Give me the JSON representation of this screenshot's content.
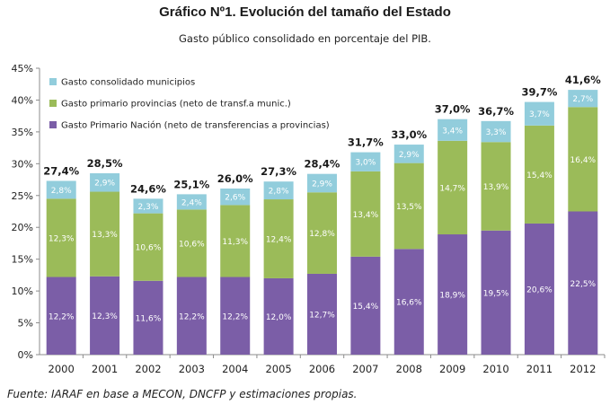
{
  "title": "Gráfico Nº1. Evolución del tamaño del Estado",
  "subtitle": "Gasto público consolidado en porcentaje del PIB.",
  "source": "Fuente: IARAF en base a MECON, DNCFP y estimaciones propias.",
  "chart_data": {
    "type": "bar",
    "stacked": true,
    "categories": [
      "2000",
      "2001",
      "2002",
      "2003",
      "2004",
      "2005",
      "2006",
      "2007",
      "2008",
      "2009",
      "2010",
      "2011",
      "2012"
    ],
    "series": [
      {
        "name": "Gasto Primario Nación (neto de transferencias a provincias)",
        "color": "#7b5ea7",
        "values": [
          12.2,
          12.3,
          11.6,
          12.2,
          12.2,
          12.0,
          12.7,
          15.4,
          16.6,
          18.9,
          19.5,
          20.6,
          22.5
        ],
        "labels": [
          "12,2%",
          "12,3%",
          "11,6%",
          "12,2%",
          "12,2%",
          "12,0%",
          "12,7%",
          "15,4%",
          "16,6%",
          "18,9%",
          "19,5%",
          "20,6%",
          "22,5%"
        ]
      },
      {
        "name": "Gasto primario provincias (neto de transf.a munic.)",
        "color": "#9bbb59",
        "values": [
          12.3,
          13.3,
          10.6,
          10.6,
          11.3,
          12.4,
          12.8,
          13.4,
          13.5,
          14.7,
          13.9,
          15.4,
          16.4
        ],
        "labels": [
          "12,3%",
          "13,3%",
          "10,6%",
          "10,6%",
          "11,3%",
          "12,4%",
          "12,8%",
          "13,4%",
          "13,5%",
          "14,7%",
          "13,9%",
          "15,4%",
          "16,4%"
        ]
      },
      {
        "name": "Gasto consolidado municipios",
        "color": "#92cddc",
        "values": [
          2.8,
          2.9,
          2.3,
          2.4,
          2.6,
          2.8,
          2.9,
          3.0,
          2.9,
          3.4,
          3.3,
          3.7,
          2.7
        ],
        "labels": [
          "2,8%",
          "2,9%",
          "2,3%",
          "2,4%",
          "2,6%",
          "2,8%",
          "2,9%",
          "3,0%",
          "2,9%",
          "3,4%",
          "3,3%",
          "3,7%",
          "2,7%"
        ]
      }
    ],
    "totals": [
      27.4,
      28.5,
      24.6,
      25.1,
      26.0,
      27.3,
      28.4,
      31.7,
      33.0,
      37.0,
      36.7,
      39.7,
      41.6
    ],
    "total_labels": [
      "27,4%",
      "28,5%",
      "24,6%",
      "25,1%",
      "26,0%",
      "27,3%",
      "28,4%",
      "31,7%",
      "33,0%",
      "37,0%",
      "36,7%",
      "39,7%",
      "41,6%"
    ],
    "ylim": [
      0,
      45
    ],
    "yticks": [
      0,
      5,
      10,
      15,
      20,
      25,
      30,
      35,
      40,
      45
    ],
    "ytick_labels": [
      "0%",
      "5%",
      "10%",
      "15%",
      "20%",
      "25%",
      "30%",
      "35%",
      "40%",
      "45%"
    ],
    "legend_entries": [
      "Gasto consolidado municipios",
      "Gasto primario provincias (neto de transf.a munic.)",
      "Gasto Primario Nación (neto de transferencias a provincias)"
    ],
    "legend_position": "top-left",
    "grid": false
  }
}
